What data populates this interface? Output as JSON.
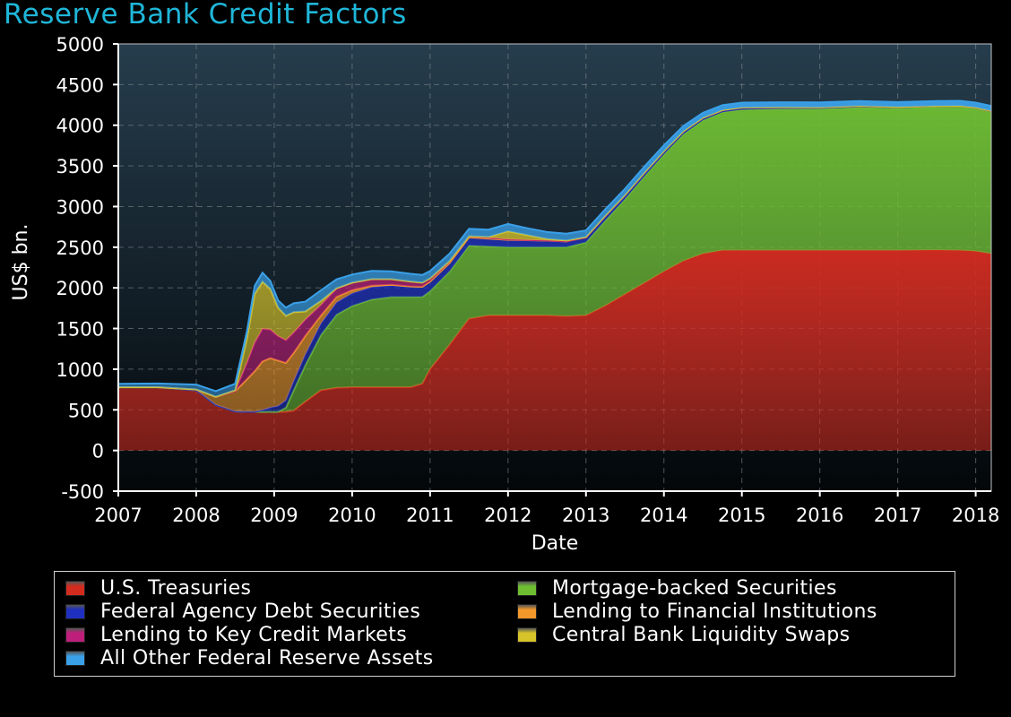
{
  "chart_data": {
    "type": "area",
    "stacked": true,
    "title": "Reserve Bank Credit Factors",
    "xlabel": "Date",
    "ylabel": "US$ bn.",
    "xlim": [
      2007.0,
      2018.2
    ],
    "ylim": [
      -500,
      5000
    ],
    "x_ticks": [
      2007,
      2008,
      2009,
      2010,
      2011,
      2012,
      2013,
      2014,
      2015,
      2016,
      2017,
      2018
    ],
    "y_ticks": [
      -500,
      0,
      500,
      1000,
      1500,
      2000,
      2500,
      3000,
      3500,
      4000,
      4500,
      5000
    ],
    "grid": true,
    "legend_position": "bottom",
    "x": [
      2007.0,
      2007.5,
      2008.0,
      2008.25,
      2008.5,
      2008.65,
      2008.75,
      2008.85,
      2008.95,
      2009.05,
      2009.15,
      2009.25,
      2009.4,
      2009.6,
      2009.8,
      2010.0,
      2010.25,
      2010.5,
      2010.75,
      2010.9,
      2011.0,
      2011.25,
      2011.5,
      2011.75,
      2012.0,
      2012.25,
      2012.5,
      2012.75,
      2013.0,
      2013.25,
      2013.5,
      2013.75,
      2014.0,
      2014.25,
      2014.5,
      2014.75,
      2015.0,
      2015.5,
      2016.0,
      2016.5,
      2017.0,
      2017.5,
      2017.8,
      2018.0,
      2018.2
    ],
    "series": [
      {
        "name": "U.S. Treasuries",
        "color": "#d42b1f",
        "values": [
          778,
          778,
          740,
          560,
          480,
          476,
          476,
          476,
          476,
          476,
          476,
          490,
          600,
          740,
          770,
          777,
          777,
          777,
          777,
          820,
          1000,
          1300,
          1620,
          1660,
          1660,
          1660,
          1660,
          1650,
          1660,
          1780,
          1920,
          2060,
          2200,
          2330,
          2420,
          2460,
          2461,
          2461,
          2461,
          2461,
          2461,
          2465,
          2460,
          2450,
          2420
        ]
      },
      {
        "name": "Mortgage-backed Securities",
        "color": "#6fbe32",
        "values": [
          0,
          0,
          0,
          0,
          0,
          0,
          0,
          0,
          0,
          0,
          50,
          250,
          450,
          680,
          900,
          1000,
          1080,
          1110,
          1110,
          1070,
          960,
          900,
          900,
          850,
          840,
          840,
          840,
          850,
          900,
          1050,
          1170,
          1310,
          1440,
          1560,
          1640,
          1700,
          1730,
          1740,
          1740,
          1760,
          1750,
          1760,
          1770,
          1760,
          1750
        ]
      },
      {
        "name": "Federal Agency Debt Securities",
        "color": "#1f2fbf",
        "values": [
          0,
          0,
          0,
          0,
          0,
          0,
          0,
          20,
          50,
          70,
          90,
          110,
          130,
          140,
          150,
          155,
          150,
          140,
          125,
          120,
          115,
          105,
          100,
          95,
          90,
          85,
          80,
          70,
          60,
          55,
          50,
          45,
          40,
          35,
          30,
          25,
          25,
          20,
          18,
          15,
          12,
          10,
          8,
          6,
          5
        ]
      },
      {
        "name": "Lending to Financial Institutions",
        "color": "#f2982a",
        "values": [
          1,
          1,
          10,
          100,
          250,
          400,
          500,
          600,
          610,
          560,
          460,
          350,
          230,
          100,
          70,
          40,
          20,
          10,
          5,
          3,
          2,
          1,
          1,
          1,
          1,
          1,
          1,
          1,
          1,
          1,
          1,
          1,
          1,
          1,
          1,
          1,
          1,
          1,
          1,
          1,
          1,
          1,
          1,
          1,
          1
        ]
      },
      {
        "name": "Lending to Key Credit Markets",
        "color": "#bf1f7a",
        "values": [
          0,
          0,
          0,
          0,
          0,
          200,
          350,
          400,
          350,
          300,
          280,
          250,
          200,
          130,
          100,
          90,
          80,
          70,
          60,
          50,
          40,
          25,
          15,
          10,
          5,
          2,
          1,
          1,
          0,
          0,
          0,
          0,
          0,
          0,
          0,
          0,
          0,
          0,
          0,
          0,
          0,
          0,
          0,
          0,
          0
        ]
      },
      {
        "name": "Central Bank Liquidity Swaps",
        "color": "#d6c32a",
        "values": [
          0,
          0,
          0,
          0,
          10,
          300,
          600,
          580,
          500,
          350,
          300,
          250,
          100,
          50,
          5,
          2,
          1,
          1,
          1,
          1,
          0,
          0,
          0,
          10,
          100,
          60,
          20,
          10,
          5,
          3,
          2,
          1,
          1,
          1,
          1,
          1,
          1,
          1,
          1,
          1,
          1,
          1,
          1,
          1,
          1
        ]
      },
      {
        "name": "All Other Federal Reserve Assets",
        "color": "#3aa0e8",
        "values": [
          40,
          45,
          60,
          70,
          80,
          90,
          100,
          110,
          100,
          90,
          100,
          110,
          120,
          130,
          110,
          100,
          100,
          95,
          95,
          95,
          90,
          90,
          90,
          90,
          90,
          85,
          85,
          85,
          80,
          80,
          75,
          75,
          70,
          65,
          60,
          60,
          60,
          60,
          60,
          60,
          60,
          60,
          60,
          60,
          60
        ]
      }
    ],
    "legend_order": [
      "U.S. Treasuries",
      "Mortgage-backed Securities",
      "Federal Agency Debt Securities",
      "Lending to Financial Institutions",
      "Lending to Key Credit Markets",
      "Central Bank Liquidity Swaps",
      "All Other Federal Reserve Assets"
    ]
  }
}
